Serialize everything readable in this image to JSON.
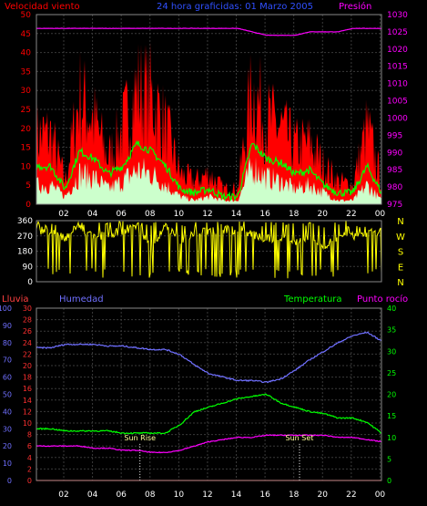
{
  "header": {
    "title": "24 hora graficidas: 01 Marzo 2005",
    "left_label": "Velocidad viento",
    "right_label": "Presión"
  },
  "labels": {
    "rain": "Lluvia",
    "humidity": "Humedad",
    "temperature": "Temperatura",
    "dewpoint": "Punto rocío",
    "sunrise": "Sun Rise",
    "sunset": "Sun Set"
  },
  "colors": {
    "wind_gust": "#ff0000",
    "wind_avg": "#00ff00",
    "wind_low": "#ccffcc",
    "pressure": "#ff00ff",
    "direction": "#ffff00",
    "humidity": "#7070ff",
    "temperature": "#00ff00",
    "dewpoint": "#ff00ff",
    "rain": "#ff0000",
    "rain_axis": "#ff3030",
    "grid": "#3a3a3a"
  },
  "chart_data": [
    {
      "type": "area",
      "title": "24 hora graficidas: 01 Marzo 2005",
      "x_ticks": [
        "02",
        "04",
        "06",
        "08",
        "10",
        "12",
        "14",
        "16",
        "18",
        "20",
        "22",
        "00"
      ],
      "x": [
        1,
        2,
        3,
        4,
        5,
        6,
        7,
        8,
        9,
        10,
        11,
        12,
        13,
        14,
        15,
        16,
        17,
        18,
        19,
        20,
        21,
        22,
        23,
        24
      ],
      "left_axis": {
        "label": "Velocidad viento",
        "range": [
          0,
          50
        ],
        "ticks": [
          0,
          5,
          10,
          15,
          20,
          25,
          30,
          35,
          40,
          45,
          50
        ]
      },
      "right_axis": {
        "label": "Presión",
        "range": [
          975,
          1030
        ],
        "ticks": [
          975,
          980,
          985,
          990,
          995,
          1000,
          1005,
          1010,
          1015,
          1020,
          1025,
          1030
        ]
      },
      "series": [
        {
          "name": "Velocidad viento",
          "axis": "left",
          "values": [
            18,
            6,
            28,
            22,
            12,
            20,
            30,
            28,
            20,
            8,
            6,
            8,
            4,
            4,
            30,
            22,
            20,
            15,
            16,
            10,
            6,
            5,
            20,
            6
          ]
        },
        {
          "axis": "left",
          "values": [
            10,
            4,
            14,
            12,
            8,
            10,
            16,
            14,
            10,
            4,
            3,
            4,
            2,
            2,
            16,
            12,
            11,
            8,
            9,
            5,
            3,
            3,
            10,
            3
          ]
        },
        {
          "axis": "left",
          "values": [
            5,
            2,
            8,
            7,
            4,
            6,
            9,
            8,
            5,
            2,
            1,
            2,
            1,
            1,
            10,
            7,
            6,
            4,
            5,
            3,
            1,
            1,
            5,
            1
          ]
        },
        {
          "name": "Presión",
          "axis": "right",
          "values": [
            1026,
            1026,
            1026,
            1026,
            1026,
            1026,
            1026,
            1026,
            1026,
            1026,
            1026,
            1026,
            1026,
            1026,
            1025,
            1024,
            1024,
            1024,
            1025,
            1025,
            1025,
            1026,
            1026,
            1026
          ]
        }
      ]
    },
    {
      "type": "line",
      "y_axis": {
        "range": [
          0,
          360
        ],
        "ticks": [
          0,
          90,
          180,
          270,
          360
        ]
      },
      "direction_labels": [
        "N",
        "W",
        "S",
        "E",
        "N"
      ],
      "x": [
        1,
        2,
        3,
        4,
        5,
        6,
        7,
        8,
        9,
        10,
        11,
        12,
        13,
        14,
        15,
        16,
        17,
        18,
        19,
        20,
        21,
        22,
        23,
        24
      ],
      "values": [
        300,
        250,
        320,
        260,
        280,
        300,
        320,
        200,
        330,
        240,
        280,
        300,
        310,
        300,
        280,
        250,
        260,
        240,
        250,
        210,
        260,
        270,
        280,
        300
      ]
    },
    {
      "type": "line",
      "x_ticks": [
        "02",
        "04",
        "06",
        "08",
        "10",
        "12",
        "14",
        "16",
        "18",
        "20",
        "22",
        "00"
      ],
      "x": [
        1,
        2,
        3,
        4,
        5,
        6,
        7,
        8,
        9,
        10,
        11,
        12,
        13,
        14,
        15,
        16,
        17,
        18,
        19,
        20,
        21,
        22,
        23,
        24
      ],
      "axes": {
        "humidity": {
          "label": "Humedad",
          "range": [
            0,
            100
          ],
          "ticks": [
            0,
            10,
            20,
            30,
            40,
            50,
            60,
            70,
            80,
            90,
            100
          ]
        },
        "rain": {
          "label": "Lluvia",
          "range": [
            0,
            30
          ],
          "ticks": [
            0,
            2,
            4,
            6,
            8,
            10,
            12,
            14,
            16,
            18,
            20,
            22,
            24,
            26,
            28,
            30
          ]
        },
        "temperature": {
          "label": "Temperatura",
          "range": [
            0,
            40
          ],
          "ticks": [
            0,
            5,
            10,
            15,
            20,
            25,
            30,
            35,
            40
          ]
        }
      },
      "series": [
        {
          "name": "Humedad",
          "axis": "humidity",
          "values": [
            77,
            79,
            79,
            79,
            78,
            78,
            77,
            76,
            76,
            73,
            67,
            62,
            60,
            58,
            58,
            57,
            59,
            64,
            70,
            75,
            80,
            84,
            86,
            81
          ]
        },
        {
          "name": "Temperatura",
          "axis": "temperature",
          "values": [
            12,
            11.5,
            11.5,
            11.5,
            11.5,
            11,
            11,
            11,
            11,
            13,
            16,
            17,
            18,
            19,
            19.5,
            20,
            18,
            17,
            16,
            15.5,
            14.5,
            14.5,
            13.5,
            11
          ]
        },
        {
          "name": "Punto rocío",
          "axis": "temperature",
          "values": [
            8,
            8,
            8,
            7.5,
            7.5,
            7,
            7,
            6.5,
            6.5,
            7,
            8,
            9,
            9.5,
            10,
            10,
            10.5,
            10.5,
            10.5,
            10.5,
            10.5,
            10,
            10,
            9.5,
            9
          ]
        },
        {
          "name": "Lluvia",
          "axis": "rain",
          "values": [
            0,
            0,
            0,
            0,
            0,
            0,
            0,
            0,
            0,
            0,
            0,
            0,
            0,
            0,
            0,
            0,
            0,
            0,
            0,
            0,
            0,
            0,
            0,
            0
          ]
        }
      ],
      "annotations": [
        {
          "text": "Sun Rise",
          "x": 7.2
        },
        {
          "text": "Sun Set",
          "x": 18.3
        }
      ]
    }
  ]
}
